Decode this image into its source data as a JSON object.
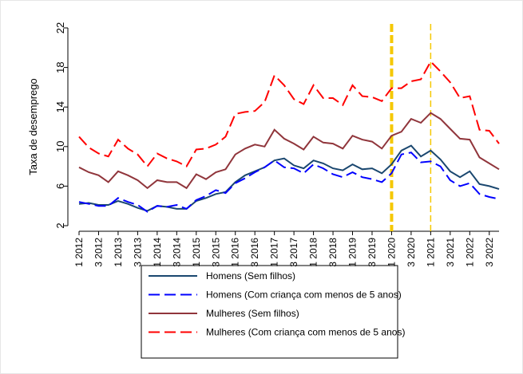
{
  "chart_data": {
    "type": "line",
    "y_label": "Taxa de desemprego",
    "categories": [
      "1 2012",
      null,
      "3 2012",
      null,
      "1 2013",
      null,
      "3 2013",
      null,
      "1 2014",
      null,
      "3 2014",
      null,
      "1 2015",
      null,
      "3 2015",
      null,
      "1 2016",
      null,
      "3 2016",
      null,
      "1 2017",
      null,
      "3 2017",
      null,
      "1 2018",
      null,
      "3 2018",
      null,
      "1 2019",
      null,
      "3 2019",
      null,
      "1 2020",
      null,
      "3 2020",
      null,
      "1 2021",
      null,
      "3 2021",
      null,
      "1 2022",
      null,
      "3 2022",
      null
    ],
    "series": [
      {
        "name": "Homens (Sem filhos)",
        "color": "#1a476f",
        "dashed": false,
        "values": [
          4.2,
          4.3,
          4.1,
          4.1,
          4.5,
          4.2,
          3.8,
          3.5,
          4.0,
          3.9,
          3.7,
          3.7,
          4.5,
          4.8,
          5.2,
          5.4,
          6.4,
          7.1,
          7.5,
          7.9,
          8.6,
          8.8,
          8.1,
          7.8,
          8.6,
          8.3,
          7.8,
          7.6,
          8.2,
          7.7,
          7.8,
          7.3,
          8.2,
          9.6,
          10.1,
          9.0,
          9.6,
          8.7,
          7.5,
          6.9,
          7.5,
          6.2,
          6.0,
          5.7
        ]
      },
      {
        "name": "Homens (Com criança com menos de 5 anos)",
        "color": "#0000ff",
        "dashed": true,
        "values": [
          4.4,
          4.2,
          4.0,
          4.0,
          4.8,
          4.4,
          4.1,
          3.4,
          4.0,
          3.9,
          4.1,
          3.7,
          4.6,
          5.0,
          5.6,
          5.3,
          6.3,
          6.8,
          7.4,
          7.9,
          8.6,
          7.9,
          7.8,
          7.3,
          8.2,
          7.8,
          7.2,
          6.9,
          7.4,
          6.9,
          6.7,
          6.4,
          7.3,
          9.2,
          9.4,
          8.4,
          8.5,
          8.0,
          6.6,
          6.0,
          6.3,
          5.2,
          4.9,
          4.7
        ]
      },
      {
        "name": "Mulheres (Sem filhos)",
        "color": "#90353b",
        "dashed": false,
        "values": [
          7.9,
          7.4,
          7.1,
          6.4,
          7.5,
          7.1,
          6.6,
          5.8,
          6.6,
          6.4,
          6.4,
          5.8,
          7.2,
          6.7,
          7.4,
          7.7,
          9.2,
          9.8,
          10.2,
          10.0,
          11.7,
          10.8,
          10.3,
          9.7,
          11.0,
          10.4,
          10.3,
          9.8,
          11.1,
          10.7,
          10.5,
          9.8,
          11.1,
          11.5,
          12.8,
          12.4,
          13.4,
          12.8,
          11.8,
          10.8,
          10.7,
          8.9,
          8.3,
          7.7
        ]
      },
      {
        "name": "Mulheres (Com criança com menos de 5 anos)",
        "color": "#ff0000",
        "dashed": true,
        "values": [
          11.0,
          9.9,
          9.3,
          9.0,
          10.7,
          9.8,
          9.2,
          8.0,
          9.3,
          8.8,
          8.5,
          8.0,
          9.7,
          9.8,
          10.2,
          11.0,
          13.3,
          13.5,
          13.6,
          14.5,
          17.2,
          16.2,
          14.8,
          14.3,
          16.2,
          14.9,
          14.9,
          14.2,
          16.2,
          15.1,
          15.0,
          14.6,
          15.9,
          15.9,
          16.6,
          16.8,
          18.6,
          17.6,
          16.5,
          14.9,
          15.1,
          11.7,
          11.6,
          10.3
        ]
      }
    ],
    "ylim": [
      2,
      22
    ],
    "yticks": [
      2,
      6,
      10,
      14,
      18,
      22
    ],
    "vlines": [
      {
        "x": "1 2020",
        "color": "#f5c800"
      },
      {
        "x": "1 2021",
        "color": "#f5c800"
      }
    ]
  }
}
